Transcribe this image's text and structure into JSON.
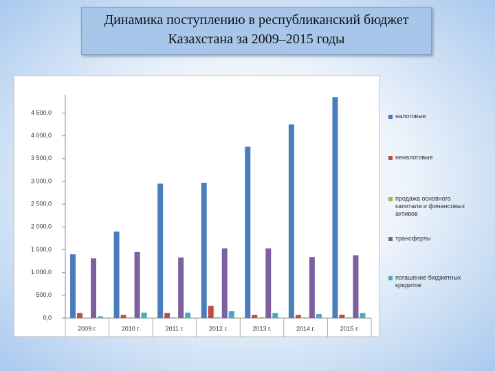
{
  "chart_data": {
    "type": "bar",
    "title": "Динамика поступлению в республиканский бюджет Казахстана за 2009–2015 годы",
    "categories": [
      "2009 г.",
      "2010 г.",
      "2011 г.",
      "2012 г.",
      "2013 г.",
      "2014 г.",
      "2015 г."
    ],
    "series": [
      {
        "name": "налоговые",
        "color": "#4a7ebb",
        "values": [
          1400,
          1900,
          2950,
          2970,
          3760,
          4250,
          4850
        ]
      },
      {
        "name": "неналоговые",
        "color": "#be4b48",
        "values": [
          110,
          70,
          110,
          270,
          70,
          70,
          75
        ]
      },
      {
        "name": "продажа основного капитала и финансовых активов",
        "color": "#98b954",
        "values": [
          10,
          15,
          15,
          20,
          20,
          15,
          20
        ]
      },
      {
        "name": "трансферты",
        "color": "#7d60a0",
        "values": [
          1310,
          1450,
          1330,
          1530,
          1530,
          1340,
          1380
        ]
      },
      {
        "name": "погашение бюджетных кредитов",
        "color": "#46aac5",
        "values": [
          40,
          120,
          120,
          150,
          110,
          90,
          110
        ]
      }
    ],
    "ylim": [
      0,
      4900
    ],
    "yticks": [
      {
        "value": 0,
        "label": "0,0"
      },
      {
        "value": 500,
        "label": "500,0"
      },
      {
        "value": 1000,
        "label": "1 000,0"
      },
      {
        "value": 1500,
        "label": "1 500,0"
      },
      {
        "value": 2000,
        "label": "2 000,0"
      },
      {
        "value": 2500,
        "label": "2 500,0"
      },
      {
        "value": 3000,
        "label": "3 000,0"
      },
      {
        "value": 3500,
        "label": "3 500,0"
      },
      {
        "value": 4000,
        "label": "4 000,0"
      },
      {
        "value": 4500,
        "label": "4 500,0"
      }
    ],
    "legend": "right"
  }
}
